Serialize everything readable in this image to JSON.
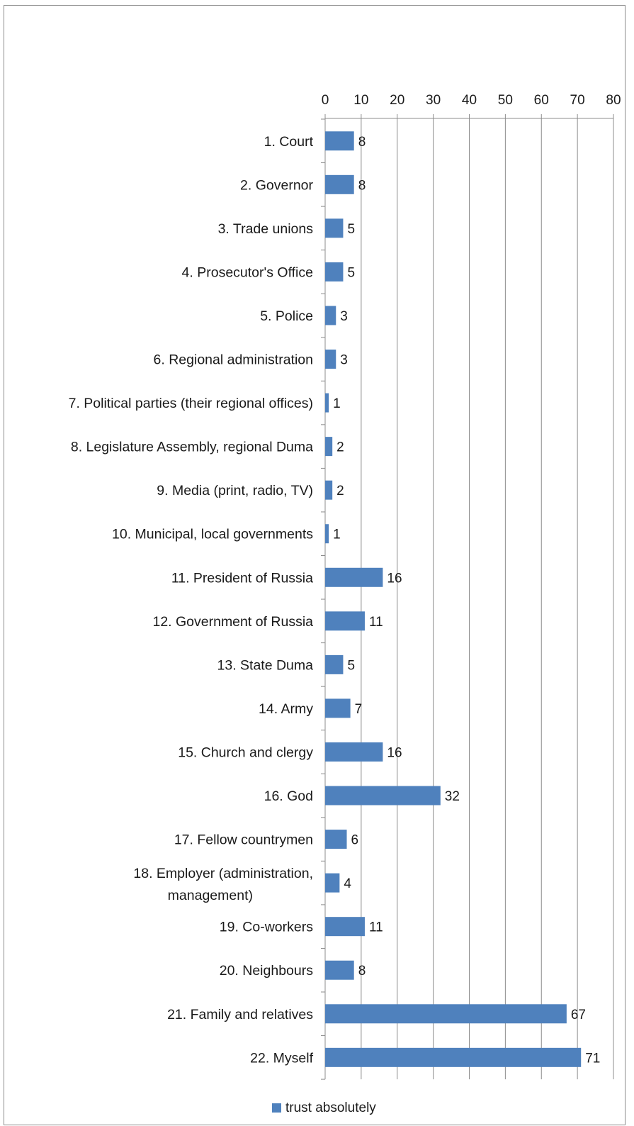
{
  "chart_data": {
    "type": "bar",
    "orientation": "horizontal",
    "categories": [
      "1. Court",
      "2. Governor",
      "3. Trade unions",
      "4. Prosecutor's Office",
      "5. Police",
      "6. Regional administration",
      "7. Political parties (their regional offices)",
      "8. Legislature Assembly, regional Duma",
      "9. Media (print, radio, TV)",
      "10. Municipal, local governments",
      "11. President of Russia",
      "12. Government of Russia",
      "13. State Duma",
      "14. Army",
      "15. Church and clergy",
      "16. God",
      "17. Fellow countrymen",
      "18. Employer (administration, management)",
      "19. Co-workers",
      "20. Neighbours",
      "21. Family and relatives",
      "22. Myself"
    ],
    "series": [
      {
        "name": "trust absolutely",
        "color": "#4f81bd",
        "values": [
          8,
          8,
          5,
          5,
          3,
          3,
          1,
          2,
          2,
          1,
          16,
          11,
          5,
          7,
          16,
          32,
          6,
          4,
          11,
          8,
          67,
          71
        ]
      }
    ],
    "xlim": [
      0,
      80
    ],
    "x_ticks": [
      0,
      10,
      20,
      30,
      40,
      50,
      60,
      70,
      80
    ],
    "x_axis_position": "top",
    "grid": "vertical",
    "data_labels": true,
    "legend_position": "bottom",
    "title": "",
    "xlabel": "",
    "ylabel": ""
  }
}
